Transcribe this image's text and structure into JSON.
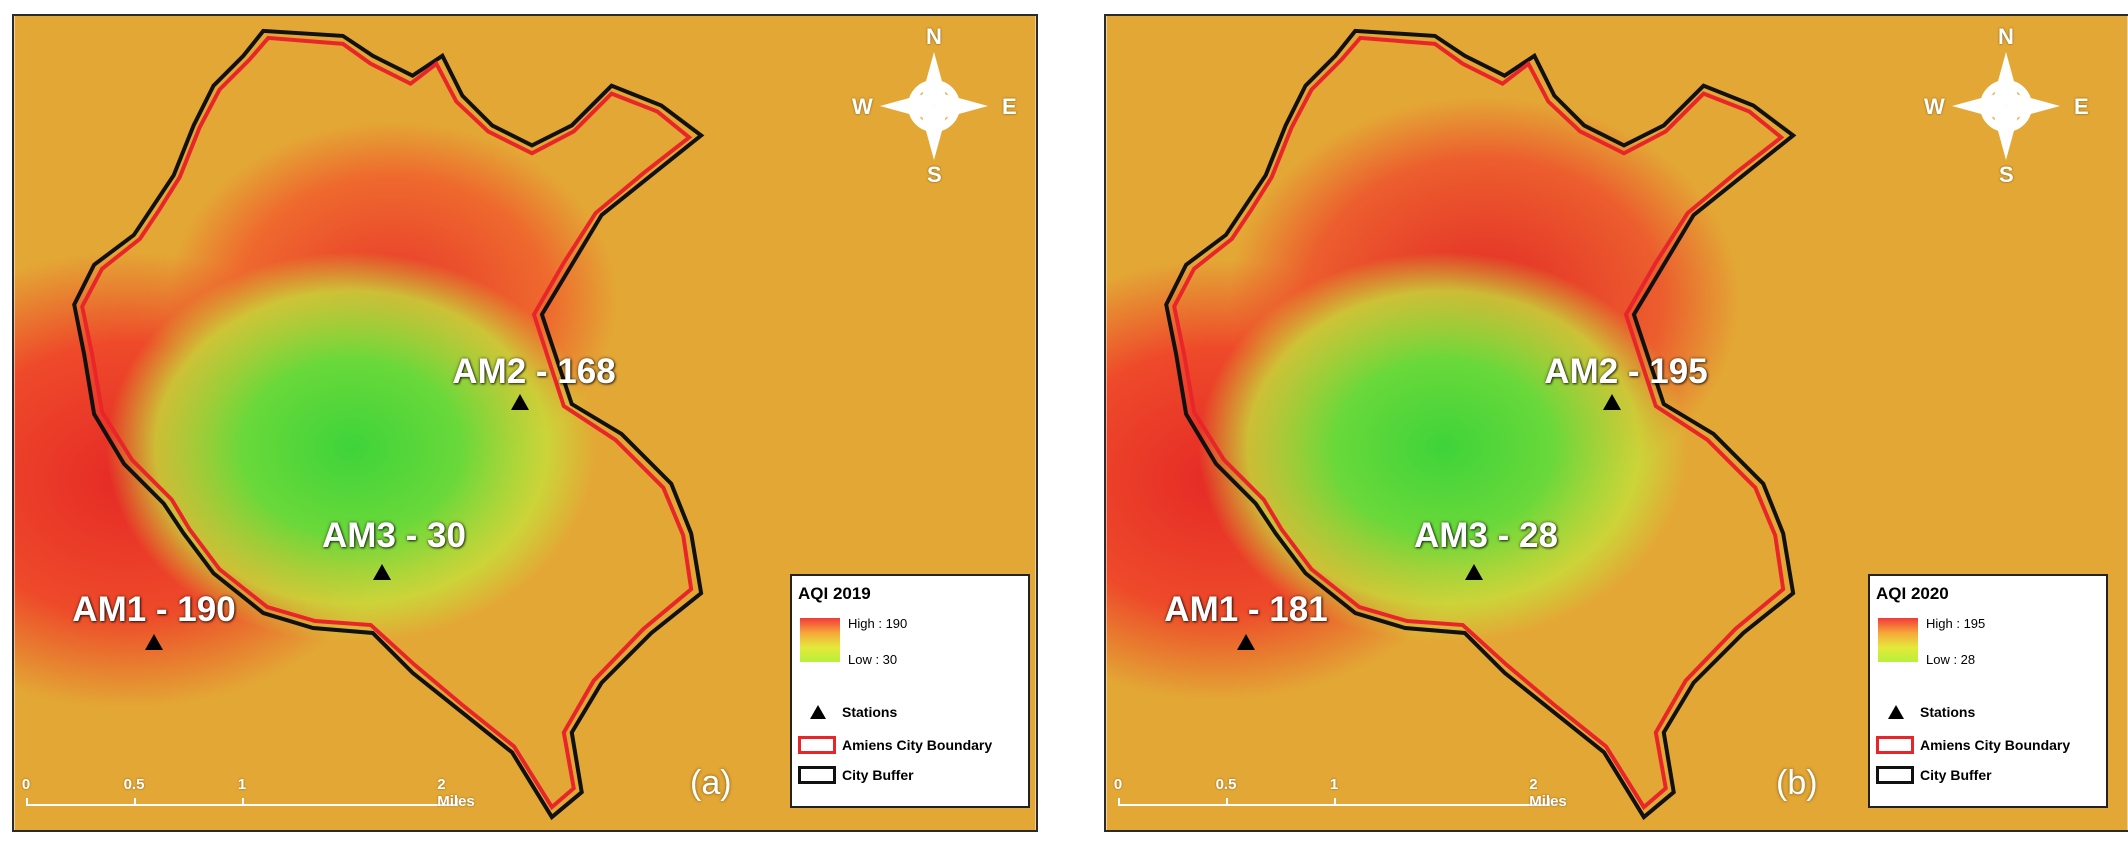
{
  "panels": [
    {
      "id": "a",
      "tag": "(a)",
      "legend": {
        "title": "AQI 2019",
        "high": "High : 190",
        "low": "Low : 30"
      },
      "stations": [
        {
          "label": "AM1 - 190"
        },
        {
          "label": "AM2 - 168"
        },
        {
          "label": "AM3 - 30"
        }
      ]
    },
    {
      "id": "b",
      "tag": "(b)",
      "legend": {
        "title": "AQI 2020",
        "high": "High : 195",
        "low": "Low : 28"
      },
      "stations": [
        {
          "label": "AM1 - 181"
        },
        {
          "label": "AM2 - 195"
        },
        {
          "label": "AM3 - 28"
        }
      ]
    }
  ],
  "legend_items": {
    "stations": "Stations",
    "boundary": "Amiens City Boundary",
    "buffer": "City Buffer"
  },
  "compass": {
    "n": "N",
    "s": "S",
    "e": "E",
    "w": "W"
  },
  "scale": {
    "t0": "0",
    "t1": "0.5",
    "t2": "1",
    "t3": "2 Miles"
  },
  "colors": {
    "boundary": "#e8262a",
    "buffer": "#111111",
    "high": "#f23a3a",
    "low": "#b7f03a"
  }
}
